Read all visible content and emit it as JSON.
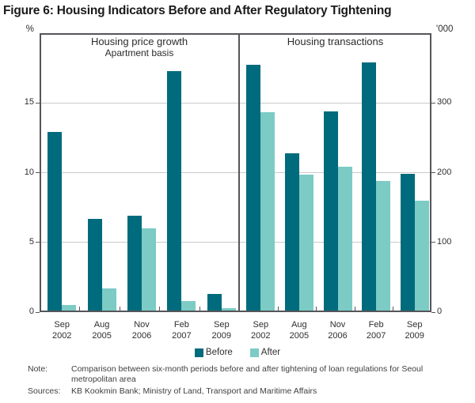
{
  "figure_title": "Figure 6: Housing Indicators Before and After Regulatory Tightening",
  "chart_data": {
    "type": "bar",
    "categories": [
      "Sep 2002",
      "Aug 2005",
      "Nov 2006",
      "Feb 2007",
      "Sep 2009"
    ],
    "panels": [
      {
        "title": "Housing price growth",
        "subtitle": "Apartment basis",
        "axis_side": "left",
        "axis_unit": "%",
        "ylim": [
          0,
          20
        ],
        "yticks": [
          0,
          5,
          10,
          15
        ],
        "series": [
          {
            "name": "Before",
            "values": [
              12.9,
              6.7,
              6.9,
              17.3,
              1.3
            ]
          },
          {
            "name": "After",
            "values": [
              0.5,
              1.7,
              6.0,
              0.8,
              0.3
            ]
          }
        ]
      },
      {
        "title": "Housing transactions",
        "subtitle": "",
        "axis_side": "right",
        "axis_unit": "'000",
        "ylim": [
          0,
          400
        ],
        "yticks": [
          0,
          100,
          200,
          300
        ],
        "series": [
          {
            "name": "Before",
            "values": [
              355,
              228,
              288,
              358,
              198
            ]
          },
          {
            "name": "After",
            "values": [
              287,
              197,
              208,
              188,
              160
            ]
          }
        ]
      }
    ],
    "legend": [
      {
        "label": "Before",
        "color": "#006b7c"
      },
      {
        "label": "After",
        "color": "#7ccbc5"
      }
    ],
    "grid": true,
    "legend_position": "bottom-center",
    "colors": {
      "before": "#006b7c",
      "after": "#7ccbc5",
      "axis": "#55565a",
      "gridline": "#c9cacb"
    }
  },
  "notes": {
    "note_label": "Note:",
    "note_text": "Comparison between six-month periods before and after tightening of loan regulations for Seoul metropolitan area",
    "sources_label": "Sources:",
    "sources_text": "KB Kookmin Bank; Ministry of Land, Transport and Maritime Affairs"
  }
}
